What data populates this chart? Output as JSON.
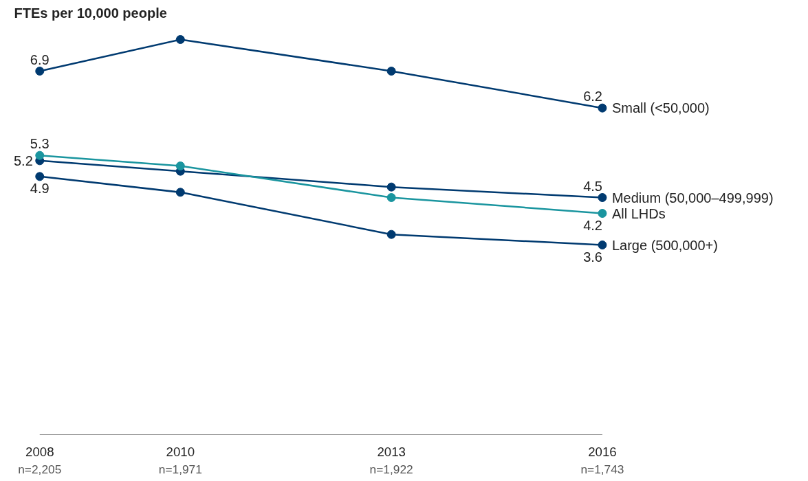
{
  "chart_data": {
    "type": "line",
    "ylabel": "FTEs per 10,000 people",
    "x": [
      2008,
      2010,
      2013,
      2016
    ],
    "xlim": [
      2008,
      2016
    ],
    "xticks": [
      2008,
      2010,
      2013,
      2016
    ],
    "annotations": [
      "n=2,205",
      "n=1,971",
      "n=1,922",
      "n=1,743"
    ],
    "tick_labels": "x",
    "grid": false,
    "legend": false,
    "marker": "circle",
    "line_style": "solid",
    "series": [
      {
        "name": "Small (<50,000)",
        "color": "#003a70",
        "values": [
          6.9,
          7.5,
          6.9,
          6.2
        ],
        "value_labels": [
          "6.9",
          null,
          null,
          "6.2"
        ]
      },
      {
        "name": "Medium (50,000–499,999)",
        "color": "#003a70",
        "values": [
          5.2,
          5.0,
          4.7,
          4.5
        ],
        "value_labels": [
          "5.2",
          null,
          null,
          "4.5"
        ]
      },
      {
        "name": "All LHDs",
        "color": "#1a959f",
        "values": [
          5.3,
          5.1,
          4.5,
          4.2
        ],
        "value_labels": [
          "5.3",
          null,
          null,
          "4.2"
        ]
      },
      {
        "name": "Large (500,000+)",
        "color": "#003a70",
        "values": [
          4.9,
          4.6,
          3.8,
          3.6
        ],
        "value_labels": [
          "4.9",
          null,
          null,
          "3.6"
        ]
      }
    ]
  }
}
